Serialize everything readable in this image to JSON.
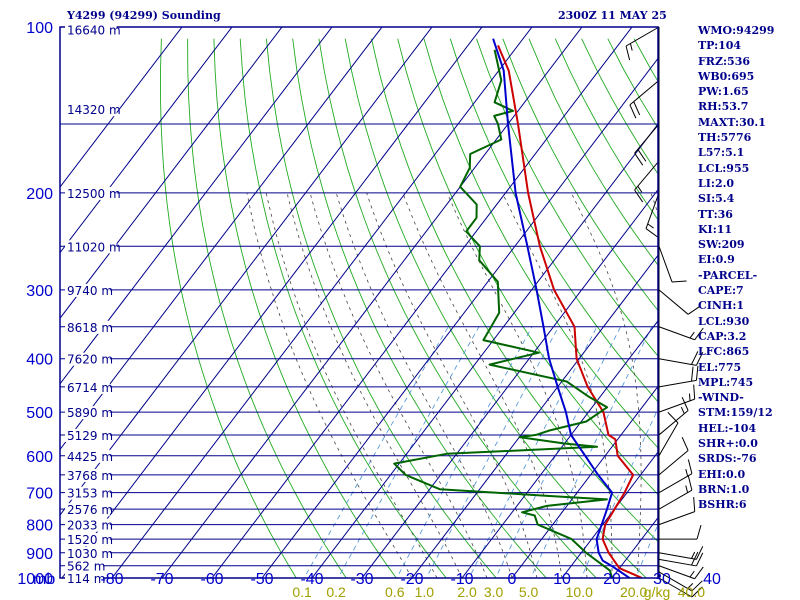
{
  "header": {
    "title": "Y4299 (94299) Sounding",
    "valid_time": "2300Z 11 MAY 25"
  },
  "indices": [
    "WMO:94299",
    "TP:104",
    "FRZ:536",
    "WB0:695",
    "PW:1.65",
    "RH:53.7",
    "MAXT:30.1",
    "TH:5776",
    "L57:5.1",
    "LCL:955",
    "LI:2.0",
    "SI:5.4",
    "TT:36",
    "KI:11",
    "SW:209",
    "EI:0.9",
    "-PARCEL-",
    "CAPE:7",
    "CINH:1",
    "LCL:930",
    "CAP:3.2",
    "LFC:865",
    "EL:775",
    "MPL:745",
    "-WIND-",
    "STM:159/12",
    "HEL:-104",
    "SHR+:0.0",
    "SRDS:-76",
    "EHI:0.0",
    "BRN:1.0",
    "BSHR:6"
  ],
  "colors": {
    "frame": "#00008b",
    "pressure_labels": "#0000cd",
    "grid": "#00008b",
    "dry_adiabats": "#22aa22",
    "moist_adiabats": "#444444",
    "mixing_ratio": "#4a90d9",
    "temperature": "#cc0000",
    "dewpoint": "#006400",
    "parcel": "#0000cc",
    "mixing_labels": "#a0a000",
    "wind_barbs": "#000000"
  },
  "chart_data": {
    "type": "skew-t",
    "xlabel": "mb",
    "x_ticks": [
      -80,
      -70,
      -60,
      -50,
      -40,
      -30,
      -20,
      -10,
      0,
      10,
      20,
      30,
      40
    ],
    "x_tick_labels": [
      "-80",
      "-70",
      "-60",
      "-50",
      "-40",
      "-30",
      "-20",
      "-10",
      "0",
      "10",
      "20",
      "30",
      "40"
    ],
    "xlim": [
      -80,
      40
    ],
    "pressure_levels": [
      100,
      200,
      300,
      400,
      500,
      600,
      700,
      800,
      900,
      1000
    ],
    "pressure_labels": [
      "100",
      "200",
      "300",
      "400",
      "500",
      "600",
      "700",
      "800",
      "900",
      "1000"
    ],
    "ylim": [
      1000,
      100
    ],
    "y_scale": "log",
    "height_labels": [
      {
        "p": 101,
        "label": "16640 m"
      },
      {
        "p": 141,
        "label": "14320 m"
      },
      {
        "p": 200,
        "label": "12500 m"
      },
      {
        "p": 250,
        "label": "11020 m"
      },
      {
        "p": 300,
        "label": "9740 m"
      },
      {
        "p": 350,
        "label": "8618 m"
      },
      {
        "p": 400,
        "label": "7620 m"
      },
      {
        "p": 450,
        "label": "6714 m"
      },
      {
        "p": 500,
        "label": "5890 m"
      },
      {
        "p": 550,
        "label": "5129 m"
      },
      {
        "p": 600,
        "label": "4425 m"
      },
      {
        "p": 650,
        "label": "3768 m"
      },
      {
        "p": 700,
        "label": "3153 m"
      },
      {
        "p": 750,
        "label": "2576 m"
      },
      {
        "p": 800,
        "label": "2033 m"
      },
      {
        "p": 850,
        "label": "1520 m"
      },
      {
        "p": 900,
        "label": "1030 m"
      },
      {
        "p": 950,
        "label": "562 m"
      },
      {
        "p": 1000,
        "label": "114 m"
      }
    ],
    "mixing_ratio_labels": [
      {
        "w": 0.1,
        "label": "0.1"
      },
      {
        "w": 0.2,
        "label": "0.2"
      },
      {
        "w": 0.6,
        "label": "0.6"
      },
      {
        "w": 1.0,
        "label": "1.0"
      },
      {
        "w": 2.0,
        "label": "2.0"
      },
      {
        "w": 3.0,
        "label": "3.0"
      },
      {
        "w": 5.0,
        "label": "5.0"
      },
      {
        "w": 10.0,
        "label": "10.0"
      },
      {
        "w": 20.0,
        "label": "20.0"
      },
      {
        "w": 40.0,
        "label": "40.0"
      }
    ],
    "mixing_ratio_unit": "g/kg",
    "series": [
      {
        "key": "temperature",
        "points": [
          [
            1000,
            26.0
          ],
          [
            960,
            20.0
          ],
          [
            900,
            15.5
          ],
          [
            850,
            12.2
          ],
          [
            800,
            10.5
          ],
          [
            750,
            10.0
          ],
          [
            700,
            9.5
          ],
          [
            650,
            8.5
          ],
          [
            600,
            2.5
          ],
          [
            560,
            -0.5
          ],
          [
            550,
            -2.5
          ],
          [
            500,
            -7.0
          ],
          [
            450,
            -14.0
          ],
          [
            400,
            -20.5
          ],
          [
            350,
            -25.8
          ],
          [
            300,
            -35.5
          ],
          [
            250,
            -45.0
          ],
          [
            200,
            -55.5
          ],
          [
            150,
            -68.0
          ],
          [
            120,
            -78.0
          ],
          [
            108,
            -84.0
          ]
        ]
      },
      {
        "key": "dewpoint",
        "points": [
          [
            1000,
            20.0
          ],
          [
            980,
            19.0
          ],
          [
            970,
            18.5
          ],
          [
            900,
            11.0
          ],
          [
            850,
            6.0
          ],
          [
            800,
            -3.0
          ],
          [
            770,
            -5.0
          ],
          [
            760,
            -8.0
          ],
          [
            740,
            -4.0
          ],
          [
            720,
            7.0
          ],
          [
            710,
            -5.0
          ],
          [
            690,
            -28.0
          ],
          [
            650,
            -37.0
          ],
          [
            620,
            -41.0
          ],
          [
            595,
            -32.0
          ],
          [
            578,
            -3.0
          ],
          [
            570,
            -10.0
          ],
          [
            555,
            -20.0
          ],
          [
            550,
            -17.0
          ],
          [
            540,
            -15.0
          ],
          [
            520,
            -9.0
          ],
          [
            490,
            -7.0
          ],
          [
            470,
            -12.0
          ],
          [
            440,
            -19.0
          ],
          [
            410,
            -37.0
          ],
          [
            390,
            -29.0
          ],
          [
            370,
            -42.0
          ],
          [
            330,
            -43.0
          ],
          [
            290,
            -48.0
          ],
          [
            265,
            -55.0
          ],
          [
            250,
            -57.0
          ],
          [
            235,
            -62.0
          ],
          [
            222,
            -62.0
          ],
          [
            210,
            -64.0
          ],
          [
            195,
            -70.0
          ],
          [
            180,
            -71.0
          ],
          [
            170,
            -73.0
          ],
          [
            160,
            -69.0
          ],
          [
            150,
            -72.0
          ],
          [
            145,
            -74.0
          ],
          [
            142,
            -71.0
          ],
          [
            137,
            -76.0
          ],
          [
            125,
            -78.0
          ],
          [
            110,
            -84.0
          ]
        ]
      },
      {
        "key": "parcel",
        "points": [
          [
            1000,
            23.5
          ],
          [
            950,
            18.0
          ],
          [
            930,
            15.5
          ],
          [
            900,
            13.5
          ],
          [
            850,
            11.0
          ],
          [
            800,
            9.8
          ],
          [
            750,
            8.5
          ],
          [
            700,
            7.0
          ],
          [
            650,
            1.5
          ],
          [
            600,
            -4.0
          ],
          [
            550,
            -10.0
          ],
          [
            500,
            -14.5
          ],
          [
            450,
            -20.0
          ],
          [
            400,
            -26.0
          ],
          [
            350,
            -32.0
          ],
          [
            300,
            -39.0
          ],
          [
            250,
            -47.5
          ],
          [
            200,
            -58.0
          ],
          [
            150,
            -70.0
          ],
          [
            120,
            -79.0
          ],
          [
            105,
            -86.0
          ]
        ]
      }
    ],
    "wind_barbs": [
      {
        "p": 1000,
        "dir": 120,
        "spd": 10
      },
      {
        "p": 975,
        "dir": 120,
        "spd": 15
      },
      {
        "p": 950,
        "dir": 110,
        "spd": 15
      },
      {
        "p": 925,
        "dir": 100,
        "spd": 20
      },
      {
        "p": 900,
        "dir": 100,
        "spd": 15
      },
      {
        "p": 850,
        "dir": 90,
        "spd": 10
      },
      {
        "p": 800,
        "dir": 70,
        "spd": 10
      },
      {
        "p": 750,
        "dir": 60,
        "spd": 15
      },
      {
        "p": 700,
        "dir": 60,
        "spd": 15
      },
      {
        "p": 650,
        "dir": 50,
        "spd": 10
      },
      {
        "p": 600,
        "dir": 30,
        "spd": 10
      },
      {
        "p": 550,
        "dir": 50,
        "spd": 15
      },
      {
        "p": 500,
        "dir": 70,
        "spd": 15
      },
      {
        "p": 450,
        "dir": 80,
        "spd": 20
      },
      {
        "p": 400,
        "dir": 100,
        "spd": 20
      },
      {
        "p": 350,
        "dir": 110,
        "spd": 15
      },
      {
        "p": 300,
        "dir": 130,
        "spd": 10
      },
      {
        "p": 250,
        "dir": 160,
        "spd": 10
      },
      {
        "p": 200,
        "dir": 200,
        "spd": 15
      },
      {
        "p": 175,
        "dir": 220,
        "spd": 15
      },
      {
        "p": 150,
        "dir": 220,
        "spd": 20
      },
      {
        "p": 125,
        "dir": 230,
        "spd": 20
      },
      {
        "p": 100,
        "dir": 240,
        "spd": 15
      }
    ]
  }
}
